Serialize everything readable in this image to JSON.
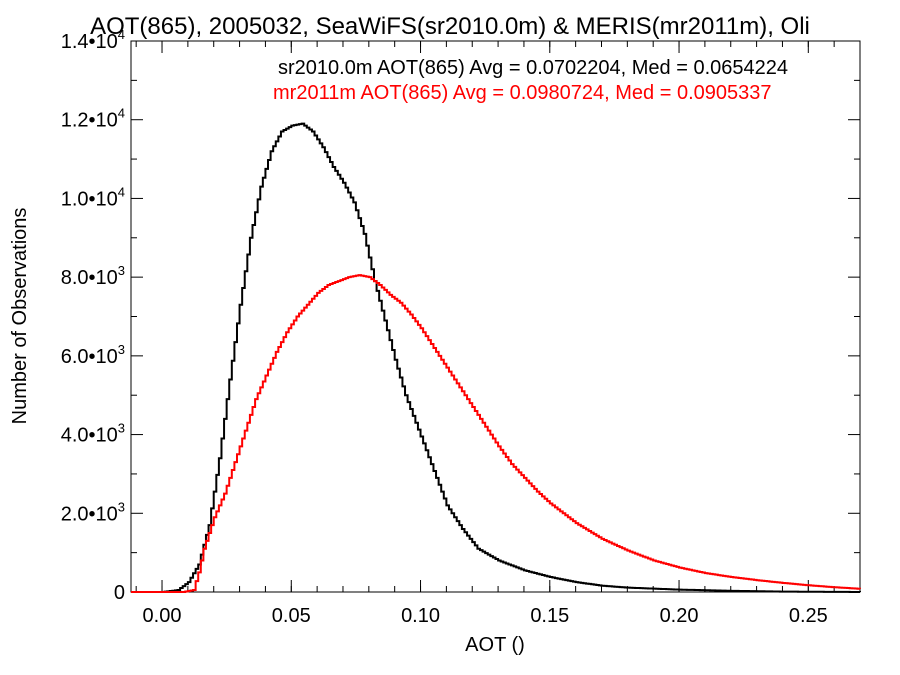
{
  "chart_data": {
    "type": "line",
    "title": "AOT(865), 2005032, SeaWiFS(sr2010.0m) & MERIS(mr2011m), Oli",
    "xlabel": "AOT ()",
    "ylabel": "Number of Observations",
    "xlim": [
      -0.012,
      0.27
    ],
    "ylim": [
      0,
      14000
    ],
    "x_ticks": [
      0.0,
      0.05,
      0.1,
      0.15,
      0.2,
      0.25
    ],
    "x_tick_labels": [
      "0.00",
      "0.05",
      "0.10",
      "0.15",
      "0.20",
      "0.25"
    ],
    "y_ticks": [
      {
        "value": 0,
        "mant": "0",
        "exp": ""
      },
      {
        "value": 2000,
        "mant": "2.0•10",
        "exp": "3"
      },
      {
        "value": 4000,
        "mant": "4.0•10",
        "exp": "3"
      },
      {
        "value": 6000,
        "mant": "6.0•10",
        "exp": "3"
      },
      {
        "value": 8000,
        "mant": "8.0•10",
        "exp": "3"
      },
      {
        "value": 10000,
        "mant": "1.0•10",
        "exp": "4"
      },
      {
        "value": 12000,
        "mant": "1.2•10",
        "exp": "4"
      },
      {
        "value": 14000,
        "mant": "1.4•10",
        "exp": "4"
      }
    ],
    "grid": false,
    "legend_position": "top-right",
    "series": [
      {
        "name": "sr2010.0m AOT(865) Avg = 0.0702204, Med = 0.0654224",
        "color": "#000000",
        "x": [
          -0.012,
          0.0,
          0.006,
          0.01,
          0.014,
          0.018,
          0.022,
          0.026,
          0.03,
          0.034,
          0.038,
          0.042,
          0.046,
          0.05,
          0.054,
          0.058,
          0.062,
          0.066,
          0.07,
          0.074,
          0.078,
          0.082,
          0.086,
          0.09,
          0.094,
          0.098,
          0.102,
          0.106,
          0.11,
          0.116,
          0.122,
          0.13,
          0.14,
          0.15,
          0.16,
          0.17,
          0.18,
          0.2,
          0.22,
          0.24,
          0.27
        ],
        "y": [
          0,
          0,
          50,
          250,
          700,
          1700,
          3400,
          5400,
          7300,
          9000,
          10300,
          11200,
          11700,
          11850,
          11900,
          11700,
          11300,
          10800,
          10400,
          9900,
          9100,
          7900,
          6900,
          5900,
          5000,
          4300,
          3600,
          2900,
          2200,
          1600,
          1100,
          800,
          550,
          380,
          250,
          160,
          110,
          60,
          30,
          10,
          0
        ]
      },
      {
        "name": "mr2011m AOT(865) Avg = 0.0980724, Med = 0.0905337",
        "color": "#ff0000",
        "x": [
          -0.012,
          0.008,
          0.012,
          0.014,
          0.016,
          0.02,
          0.024,
          0.028,
          0.032,
          0.036,
          0.04,
          0.044,
          0.048,
          0.052,
          0.056,
          0.06,
          0.064,
          0.068,
          0.072,
          0.076,
          0.08,
          0.084,
          0.088,
          0.092,
          0.096,
          0.1,
          0.104,
          0.108,
          0.112,
          0.116,
          0.12,
          0.125,
          0.13,
          0.135,
          0.14,
          0.145,
          0.15,
          0.16,
          0.17,
          0.18,
          0.19,
          0.2,
          0.21,
          0.22,
          0.23,
          0.24,
          0.25,
          0.26,
          0.27
        ],
        "y": [
          0,
          0,
          50,
          500,
          1100,
          1900,
          2500,
          3300,
          4100,
          4900,
          5500,
          6100,
          6600,
          7000,
          7300,
          7600,
          7800,
          7900,
          8000,
          8050,
          8000,
          7800,
          7550,
          7350,
          7050,
          6700,
          6300,
          5900,
          5500,
          5100,
          4700,
          4200,
          3700,
          3250,
          2900,
          2550,
          2250,
          1750,
          1350,
          1050,
          800,
          620,
          480,
          380,
          300,
          230,
          170,
          120,
          80
        ]
      }
    ]
  }
}
